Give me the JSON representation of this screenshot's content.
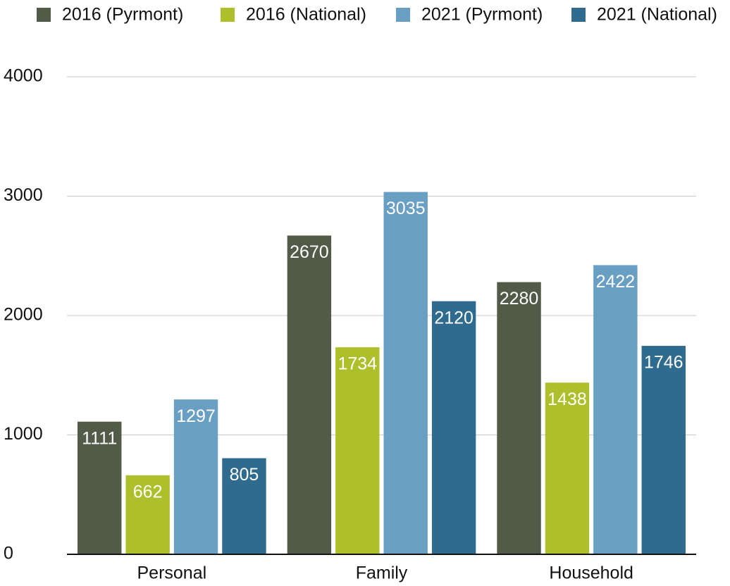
{
  "chart_data": {
    "type": "bar",
    "categories": [
      "Personal",
      "Family",
      "Household"
    ],
    "series": [
      {
        "name": "2016 (Pyrmont)",
        "color": "#525a48",
        "values": [
          1111,
          2670,
          2280
        ]
      },
      {
        "name": "2016 (National)",
        "color": "#aebf2c",
        "values": [
          662,
          1734,
          1438
        ]
      },
      {
        "name": "2021 (Pyrmont)",
        "color": "#6a9fc4",
        "values": [
          1297,
          3035,
          2422
        ]
      },
      {
        "name": "2021 (National)",
        "color": "#2f6a8f",
        "values": [
          805,
          2120,
          1746
        ]
      }
    ],
    "ylim": [
      0,
      4000
    ],
    "yticks": [
      0,
      1000,
      2000,
      3000,
      4000
    ],
    "grid": true,
    "legend": "top"
  }
}
